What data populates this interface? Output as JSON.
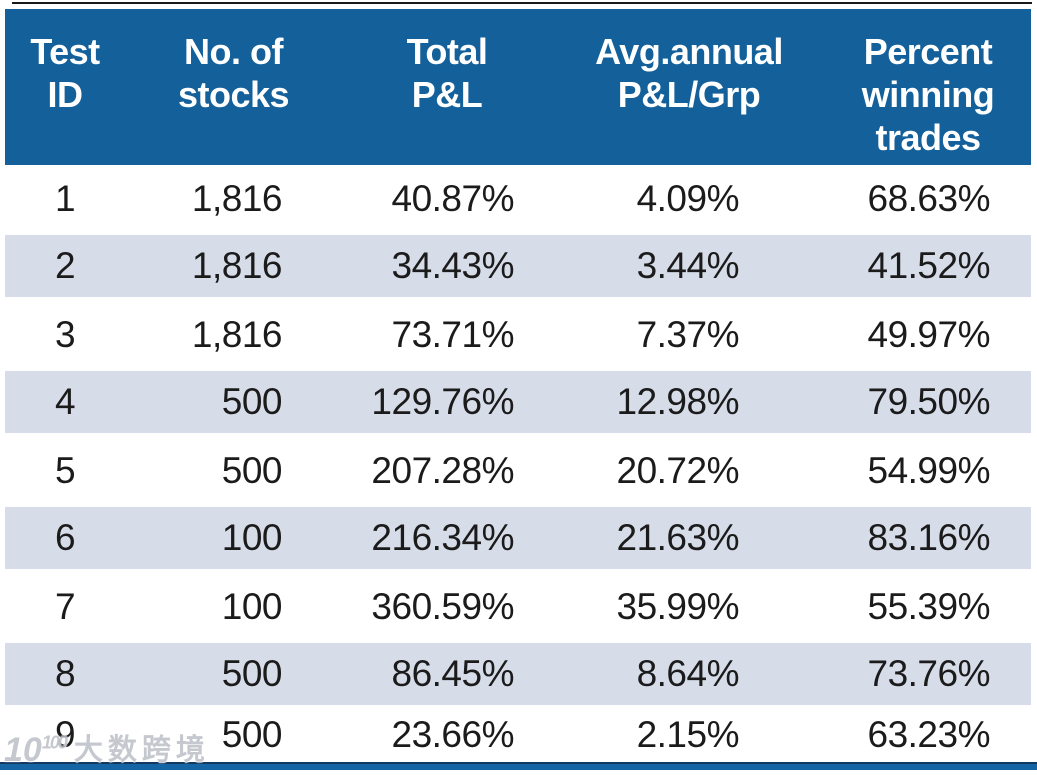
{
  "colors": {
    "header_bg": "#14609A",
    "row_alt_bg": "#D6DCE8",
    "row_bg": "#FFFFFF",
    "body_text": "#1B1B1B",
    "header_text": "#FFFFFF",
    "bottom_bar_blue": "#1565A5",
    "bottom_bar_dark": "#12395F",
    "top_rule": "#1A1A1A"
  },
  "table": {
    "headers": [
      {
        "label": "Test\nID"
      },
      {
        "label": "No. of\nstocks"
      },
      {
        "label": "Total\nP&L"
      },
      {
        "label": "Avg.annual\nP&L/Grp"
      },
      {
        "label": "Percent\nwinning\ntrades"
      }
    ],
    "rows": [
      {
        "cells": [
          "1",
          "1,816",
          "40.87%",
          "4.09%",
          "68.63%"
        ]
      },
      {
        "cells": [
          "2",
          "1,816",
          "34.43%",
          "3.44%",
          "41.52%"
        ]
      },
      {
        "cells": [
          "3",
          "1,816",
          "73.71%",
          "7.37%",
          "49.97%"
        ]
      },
      {
        "cells": [
          "4",
          "500",
          "129.76%",
          "12.98%",
          "79.50%"
        ]
      },
      {
        "cells": [
          "5",
          "500",
          "207.28%",
          "20.72%",
          "54.99%"
        ]
      },
      {
        "cells": [
          "6",
          "100",
          "216.34%",
          "21.63%",
          "83.16%"
        ]
      },
      {
        "cells": [
          "7",
          "100",
          "360.59%",
          "35.99%",
          "55.39%"
        ]
      },
      {
        "cells": [
          "8",
          "500",
          "86.45%",
          "8.64%",
          "73.76%"
        ]
      },
      {
        "cells": [
          "9",
          "500",
          "23.66%",
          "2.15%",
          "63.23%"
        ]
      }
    ]
  },
  "chart_data": {
    "type": "table",
    "columns": [
      "Test ID",
      "No. of stocks",
      "Total P&L",
      "Avg.annual P&L/Grp",
      "Percent winning trades"
    ],
    "rows": [
      [
        "1",
        "1,816",
        "40.87%",
        "4.09%",
        "68.63%"
      ],
      [
        "2",
        "1,816",
        "34.43%",
        "3.44%",
        "41.52%"
      ],
      [
        "3",
        "1,816",
        "73.71%",
        "7.37%",
        "49.97%"
      ],
      [
        "4",
        "500",
        "129.76%",
        "12.98%",
        "79.50%"
      ],
      [
        "5",
        "500",
        "207.28%",
        "20.72%",
        "54.99%"
      ],
      [
        "6",
        "100",
        "216.34%",
        "21.63%",
        "83.16%"
      ],
      [
        "7",
        "100",
        "360.59%",
        "35.99%",
        "55.39%"
      ],
      [
        "8",
        "500",
        "86.45%",
        "8.64%",
        "73.76%"
      ],
      [
        "9",
        "500",
        "23.66%",
        "2.15%",
        "63.23%"
      ]
    ]
  },
  "watermark": {
    "logo_base": "10",
    "logo_sup": "100",
    "text": "大数跨境"
  }
}
